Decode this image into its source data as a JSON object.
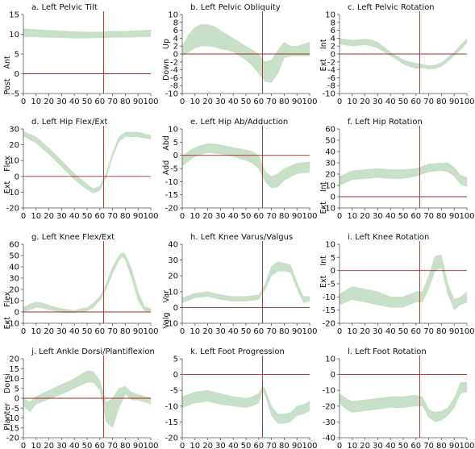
{
  "colors": {
    "band": "#c7e0c7",
    "axis": "#555555",
    "zero_line": "#a52a2a",
    "event_line": "#a52a2a"
  },
  "toe_off_percent": 63,
  "x_ticks": [
    0,
    10,
    20,
    30,
    40,
    50,
    60,
    70,
    80,
    90,
    100
  ],
  "chart_data": [
    {
      "type": "area",
      "title": "a. Left Pelvic Tilt",
      "dir_pos": "Ant",
      "dir_neg": "Post",
      "ylim": [
        -5,
        15
      ],
      "yticks": [
        -5,
        0,
        5,
        10,
        15
      ],
      "xlim": [
        0,
        100
      ],
      "x": [
        0,
        10,
        20,
        30,
        40,
        50,
        60,
        70,
        80,
        90,
        100
      ],
      "upper": [
        11.4,
        11.2,
        11.0,
        10.9,
        10.7,
        10.6,
        10.6,
        10.8,
        10.8,
        10.9,
        11.1
      ],
      "lower": [
        9.4,
        9.3,
        9.2,
        9.1,
        9.0,
        9.0,
        9.1,
        9.2,
        9.2,
        9.3,
        9.4
      ]
    },
    {
      "type": "area",
      "title": "b. Left Pelvic Obliquity",
      "dir_pos": "Up",
      "dir_neg": "Down",
      "ylim": [
        -10,
        10
      ],
      "yticks": [
        -10,
        -8,
        -6,
        -4,
        -2,
        0,
        2,
        4,
        6,
        8,
        10
      ],
      "xlim": [
        0,
        100
      ],
      "x": [
        0,
        5,
        10,
        15,
        20,
        25,
        30,
        35,
        40,
        45,
        50,
        55,
        60,
        65,
        70,
        75,
        80,
        85,
        90,
        95,
        100
      ],
      "upper": [
        2,
        5,
        6.8,
        7.5,
        7.5,
        7,
        6,
        5,
        4,
        3,
        2,
        1,
        0,
        -2,
        -1.5,
        1,
        3,
        2,
        2,
        2.5,
        3
      ],
      "lower": [
        -0.5,
        0.5,
        1.5,
        2,
        2,
        1.8,
        1.3,
        1,
        0.5,
        -0.5,
        -1.5,
        -3,
        -5,
        -7,
        -7.2,
        -5,
        -1,
        -0.5,
        -0.5,
        -0.5,
        -0.5
      ]
    },
    {
      "type": "area",
      "title": "c. Left Pelvic Rotation",
      "dir_pos": "Int",
      "dir_neg": "Ext",
      "ylim": [
        -10,
        10
      ],
      "yticks": [
        -10,
        -8,
        -6,
        -4,
        -2,
        0,
        2,
        4,
        6,
        8,
        10
      ],
      "xlim": [
        0,
        100
      ],
      "x": [
        0,
        10,
        20,
        25,
        30,
        40,
        50,
        55,
        60,
        65,
        70,
        75,
        80,
        90,
        100
      ],
      "upper": [
        4,
        3.5,
        3.8,
        3.6,
        3,
        0.5,
        -1.5,
        -2,
        -2.3,
        -2.6,
        -3,
        -2.8,
        -2.2,
        0.5,
        4
      ],
      "lower": [
        2.5,
        2,
        2.3,
        2,
        1.5,
        -0.5,
        -2.5,
        -3.2,
        -3.7,
        -3.5,
        -3.8,
        -3.7,
        -3.2,
        -0.5,
        2.7
      ]
    },
    {
      "type": "area",
      "title": "d. Left Hip Flex/Ext",
      "dir_pos": "Flex",
      "dir_neg": "Ext",
      "ylim": [
        -20,
        30
      ],
      "yticks": [
        -20,
        -10,
        0,
        10,
        20,
        30
      ],
      "xlim": [
        0,
        100
      ],
      "x": [
        0,
        10,
        20,
        30,
        40,
        50,
        55,
        60,
        65,
        70,
        75,
        80,
        90,
        100
      ],
      "upper": [
        28.5,
        25,
        18,
        10,
        2,
        -5,
        -8,
        -6,
        2,
        15,
        25,
        28,
        28,
        26
      ],
      "lower": [
        25.5,
        21,
        14,
        6,
        -2,
        -8.5,
        -10.5,
        -9,
        -1,
        12,
        22,
        25,
        25,
        23.5
      ]
    },
    {
      "type": "area",
      "title": "e. Left Hip Ab/Adduction",
      "dir_pos": "Abd",
      "dir_neg": "Add",
      "ylim": [
        -20,
        10
      ],
      "yticks": [
        -20,
        -15,
        -10,
        -5,
        0,
        5,
        10
      ],
      "xlim": [
        0,
        100
      ],
      "x": [
        0,
        10,
        20,
        30,
        40,
        50,
        55,
        60,
        65,
        70,
        75,
        80,
        90,
        100
      ],
      "upper": [
        0,
        3,
        4.5,
        4,
        3,
        2,
        1.5,
        0,
        -6,
        -8,
        -7,
        -5,
        -3,
        -2.5
      ],
      "lower": [
        -4,
        -0.5,
        1,
        0.5,
        -0.5,
        -2,
        -3,
        -5,
        -10,
        -12.5,
        -12,
        -9.5,
        -7,
        -6.5
      ]
    },
    {
      "type": "area",
      "title": "f. Left Hip Rotation",
      "dir_pos": "Int",
      "dir_neg": "Ext",
      "ylim": [
        -10,
        60
      ],
      "yticks": [
        -10,
        0,
        10,
        20,
        30,
        40,
        50,
        60
      ],
      "xlim": [
        0,
        100
      ],
      "x": [
        0,
        10,
        20,
        30,
        40,
        50,
        60,
        70,
        80,
        85,
        90,
        95,
        100
      ],
      "upper": [
        18,
        23,
        24,
        25,
        24,
        24,
        25,
        29,
        30,
        30,
        26,
        19,
        17
      ],
      "lower": [
        10,
        15,
        16,
        17,
        16,
        16,
        18,
        22,
        23,
        22,
        18,
        11,
        9
      ]
    },
    {
      "type": "area",
      "title": "g. Left Knee Flex/Ext",
      "dir_pos": "Flex",
      "dir_neg": "Ext",
      "ylim": [
        -10,
        60
      ],
      "yticks": [
        -10,
        0,
        10,
        20,
        30,
        40,
        50,
        60
      ],
      "xlim": [
        0,
        100
      ],
      "x": [
        0,
        5,
        10,
        15,
        20,
        30,
        40,
        50,
        55,
        60,
        65,
        70,
        75,
        78,
        80,
        85,
        90,
        95,
        100
      ],
      "upper": [
        4,
        7,
        9,
        8,
        6,
        3,
        1.5,
        4,
        8,
        14,
        25,
        40,
        50,
        53,
        51,
        38,
        18,
        5,
        3
      ],
      "lower": [
        0,
        2,
        4,
        3.5,
        2,
        -0.5,
        -1,
        1,
        4,
        10,
        20,
        34,
        46,
        49,
        46,
        30,
        10,
        1,
        0
      ]
    },
    {
      "type": "area",
      "title": "h. Left Knee Varus/Valgus",
      "dir_pos": "Var",
      "dir_neg": "Valg",
      "ylim": [
        -10,
        40
      ],
      "yticks": [
        -10,
        0,
        10,
        20,
        30,
        40
      ],
      "xlim": [
        0,
        100
      ],
      "x": [
        0,
        10,
        20,
        30,
        40,
        50,
        60,
        65,
        70,
        75,
        80,
        85,
        90,
        95,
        100
      ],
      "upper": [
        6,
        9,
        10,
        8,
        7,
        7,
        8,
        15,
        26,
        29,
        28,
        27,
        16,
        7,
        7
      ],
      "lower": [
        3,
        6,
        7,
        5,
        4,
        4,
        5,
        11,
        20,
        23,
        23,
        22,
        12,
        3,
        4
      ]
    },
    {
      "type": "area",
      "title": "i. Left Knee Rotation",
      "dir_pos": "Int",
      "dir_neg": "Ext",
      "ylim": [
        -20,
        10
      ],
      "yticks": [
        -20,
        -15,
        -10,
        -5,
        0,
        5,
        10
      ],
      "xlim": [
        0,
        100
      ],
      "x": [
        0,
        10,
        20,
        30,
        40,
        50,
        55,
        60,
        65,
        70,
        75,
        80,
        85,
        90,
        95,
        100
      ],
      "upper": [
        -9,
        -6,
        -7,
        -8,
        -10,
        -10,
        -9,
        -8,
        -8,
        -2,
        5.5,
        6,
        -5,
        -11,
        -10,
        -8
      ],
      "lower": [
        -13,
        -11,
        -12,
        -13,
        -14,
        -14,
        -13,
        -12,
        -12,
        -7,
        0,
        1,
        -9,
        -15,
        -13,
        -12
      ]
    },
    {
      "type": "area",
      "title": "j. Left Ankle Dorsi/Plantiflexion",
      "dir_pos": "Dorsi",
      "dir_neg": "Planter",
      "ylim": [
        -20,
        20
      ],
      "yticks": [
        -20,
        -15,
        -10,
        -5,
        0,
        5,
        10,
        15,
        20
      ],
      "xlim": [
        0,
        100
      ],
      "x": [
        0,
        5,
        10,
        20,
        30,
        40,
        50,
        55,
        60,
        65,
        70,
        75,
        80,
        85,
        90,
        95,
        100
      ],
      "upper": [
        0,
        -2,
        1,
        4,
        7,
        10,
        14,
        13.5,
        9,
        -2,
        0,
        5,
        6,
        3,
        2,
        1,
        0
      ],
      "lower": [
        -4,
        -7,
        -3,
        -0.5,
        2,
        5,
        8,
        8,
        4,
        -12,
        -15,
        -5,
        2,
        -1,
        -1,
        -2,
        -3
      ]
    },
    {
      "type": "area",
      "title": "k. Left Foot Progression",
      "dir_pos": "",
      "dir_neg": "",
      "ylim": [
        -20,
        5
      ],
      "yticks": [
        -20,
        -15,
        -10,
        -5,
        0,
        5
      ],
      "xlim": [
        0,
        100
      ],
      "x": [
        0,
        10,
        20,
        30,
        40,
        50,
        55,
        60,
        63,
        65,
        70,
        75,
        80,
        85,
        90,
        95,
        100
      ],
      "upper": [
        -7,
        -5.5,
        -5,
        -6,
        -7,
        -7.5,
        -7,
        -6,
        -3.5,
        -4.5,
        -10,
        -12.5,
        -12.5,
        -12,
        -10,
        -9.5,
        -8.5
      ],
      "lower": [
        -10.5,
        -9,
        -8.5,
        -9.5,
        -10,
        -10.5,
        -10,
        -9,
        -5.5,
        -6.5,
        -13,
        -15.5,
        -15.5,
        -15,
        -13,
        -12.5,
        -11.5
      ]
    },
    {
      "type": "area",
      "title": "l. Left Foot Rotation",
      "dir_pos": "",
      "dir_neg": "",
      "ylim": [
        -40,
        10
      ],
      "yticks": [
        -40,
        -30,
        -20,
        -10,
        0,
        10
      ],
      "xlim": [
        0,
        100
      ],
      "x": [
        0,
        5,
        10,
        20,
        30,
        40,
        50,
        60,
        65,
        70,
        75,
        80,
        85,
        90,
        95,
        100
      ],
      "upper": [
        -12,
        -15,
        -17,
        -16,
        -15,
        -14,
        -14,
        -13,
        -14,
        -22,
        -24,
        -23,
        -21,
        -15,
        -5,
        -5
      ],
      "lower": [
        -18,
        -22,
        -24,
        -23,
        -22,
        -21,
        -21,
        -20,
        -20,
        -27,
        -30,
        -29,
        -26,
        -21,
        -12,
        -11
      ]
    }
  ]
}
